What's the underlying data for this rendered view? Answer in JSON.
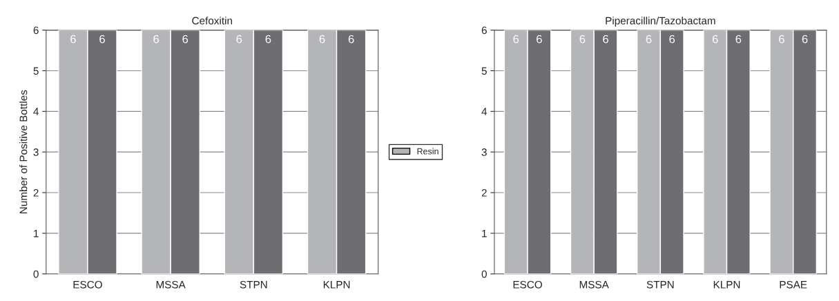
{
  "chart_data": [
    {
      "type": "bar",
      "title": "Cefoxitin",
      "ylabel": "Number of Positive Bottles",
      "categories": [
        "ESCO",
        "MSSA",
        "STPN",
        "KLPN"
      ],
      "series": [
        {
          "name": "Resin",
          "color": "#b4b5b9",
          "values": [
            6,
            6,
            6,
            6
          ]
        },
        {
          "color": "#6e6e72",
          "values": [
            6,
            6,
            6,
            6
          ]
        }
      ],
      "ylim": [
        0,
        6
      ],
      "yticks": [
        0,
        1,
        2,
        3,
        4,
        5,
        6
      ],
      "grid": "y",
      "legend": "right",
      "data_labels": true
    },
    {
      "type": "bar",
      "title": "Piperacillin/Tazobactam",
      "categories": [
        "ESCO",
        "MSSA",
        "STPN",
        "KLPN",
        "PSAE"
      ],
      "series": [
        {
          "color": "#b4b5b9",
          "values": [
            6,
            6,
            6,
            6,
            6
          ]
        },
        {
          "color": "#6e6e72",
          "values": [
            6,
            6,
            6,
            6,
            6
          ]
        }
      ],
      "ylim": [
        0,
        6
      ],
      "yticks": [
        0,
        1,
        2,
        3,
        4,
        5,
        6
      ],
      "grid": "y",
      "data_labels": true
    }
  ]
}
